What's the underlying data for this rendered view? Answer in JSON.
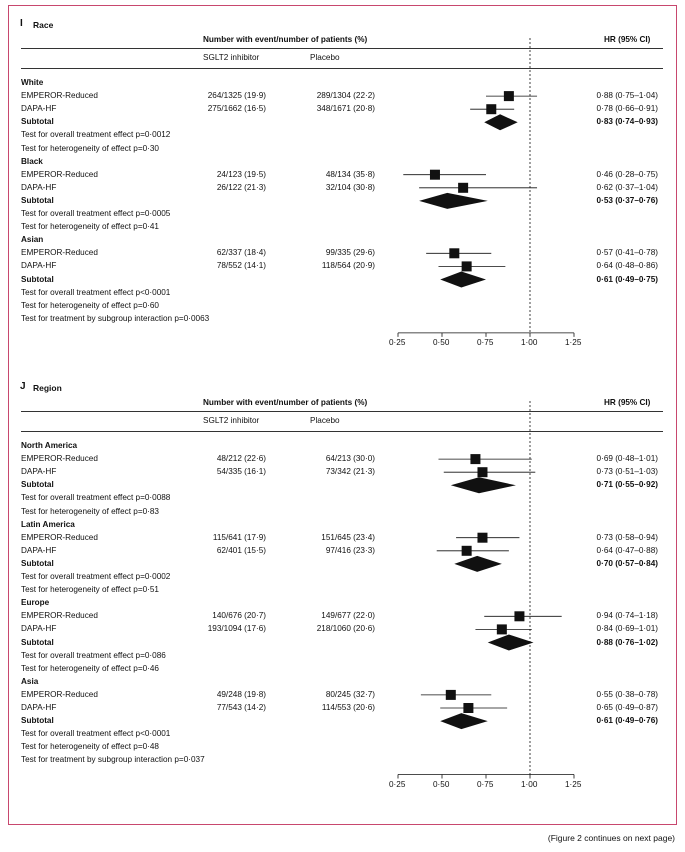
{
  "panels": [
    {
      "label": "I",
      "title": "Race",
      "header_events": "Number with event/number of patients (%)",
      "header_hr": "HR (95% CI)",
      "col_sglt2": "SGLT2 inhibitor",
      "col_placebo": "Placebo",
      "axis_ticks": [
        "0·25",
        "0·50",
        "0·75",
        "1·00",
        "1·25"
      ],
      "groups": [
        {
          "name": "White",
          "rows": [
            {
              "label": "EMPEROR-Reduced",
              "sglt2": "264/1325 (19·9)",
              "placebo": "289/1304 (22·2)",
              "hr_text": "0·88 (0·75–1·04)",
              "hr": 0.88,
              "lo": 0.75,
              "hi": 1.04
            },
            {
              "label": "DAPA-HF",
              "sglt2": "275/1662 (16·5)",
              "placebo": "348/1671 (20·8)",
              "hr_text": "0·78 (0·66–0·91)",
              "hr": 0.78,
              "lo": 0.66,
              "hi": 0.91
            }
          ],
          "subtotal": {
            "label": "Subtotal",
            "hr_text": "0·83 (0·74–0·93)",
            "hr": 0.83,
            "lo": 0.74,
            "hi": 0.93
          },
          "notes": [
            "Test for overall treatment effect p=0·0012",
            "Test for heterogeneity of effect p=0·30"
          ]
        },
        {
          "name": "Black",
          "rows": [
            {
              "label": "EMPEROR-Reduced",
              "sglt2": "24/123 (19·5)",
              "placebo": "48/134 (35·8)",
              "hr_text": "0·46 (0·28–0·75)",
              "hr": 0.46,
              "lo": 0.28,
              "hi": 0.75
            },
            {
              "label": "DAPA-HF",
              "sglt2": "26/122 (21·3)",
              "placebo": "32/104 (30·8)",
              "hr_text": "0·62 (0·37–1·04)",
              "hr": 0.62,
              "lo": 0.37,
              "hi": 1.04
            }
          ],
          "subtotal": {
            "label": "Subtotal",
            "hr_text": "0·53 (0·37–0·76)",
            "hr": 0.53,
            "lo": 0.37,
            "hi": 0.76
          },
          "notes": [
            "Test for overall treatment effect p=0·0005",
            "Test for heterogeneity of effect p=0·41"
          ]
        },
        {
          "name": "Asian",
          "rows": [
            {
              "label": "EMPEROR-Reduced",
              "sglt2": "62/337 (18·4)",
              "placebo": "99/335 (29·6)",
              "hr_text": "0·57 (0·41–0·78)",
              "hr": 0.57,
              "lo": 0.41,
              "hi": 0.78
            },
            {
              "label": "DAPA-HF",
              "sglt2": "78/552 (14·1)",
              "placebo": "118/564 (20·9)",
              "hr_text": "0·64 (0·48–0·86)",
              "hr": 0.64,
              "lo": 0.48,
              "hi": 0.86
            }
          ],
          "subtotal": {
            "label": "Subtotal",
            "hr_text": "0·61 (0·49–0·75)",
            "hr": 0.61,
            "lo": 0.49,
            "hi": 0.75
          },
          "notes": [
            "Test for overall treatment effect p<0·0001",
            "Test for heterogeneity of effect p=0·60",
            "Test for treatment by subgroup interaction p=0·0063"
          ]
        }
      ]
    },
    {
      "label": "J",
      "title": "Region",
      "header_events": "Number with event/number of patients (%)",
      "header_hr": "HR (95% CI)",
      "col_sglt2": "SGLT2 inhibitor",
      "col_placebo": "Placebo",
      "axis_ticks": [
        "0·25",
        "0·50",
        "0·75",
        "1·00",
        "1·25"
      ],
      "groups": [
        {
          "name": "North America",
          "rows": [
            {
              "label": "EMPEROR-Reduced",
              "sglt2": "48/212 (22·6)",
              "placebo": "64/213 (30·0)",
              "hr_text": "0·69 (0·48–1·01)",
              "hr": 0.69,
              "lo": 0.48,
              "hi": 1.01
            },
            {
              "label": "DAPA-HF",
              "sglt2": "54/335 (16·1)",
              "placebo": "73/342 (21·3)",
              "hr_text": "0·73 (0·51–1·03)",
              "hr": 0.73,
              "lo": 0.51,
              "hi": 1.03
            }
          ],
          "subtotal": {
            "label": "Subtotal",
            "hr_text": "0·71 (0·55–0·92)",
            "hr": 0.71,
            "lo": 0.55,
            "hi": 0.92
          },
          "notes": [
            "Test for overall treatment effect p=0·0088",
            "Test for heterogeneity of effect p=0·83"
          ]
        },
        {
          "name": "Latin America",
          "rows": [
            {
              "label": "EMPEROR-Reduced",
              "sglt2": "115/641 (17·9)",
              "placebo": "151/645 (23·4)",
              "hr_text": "0·73 (0·58–0·94)",
              "hr": 0.73,
              "lo": 0.58,
              "hi": 0.94
            },
            {
              "label": "DAPA-HF",
              "sglt2": "62/401 (15·5)",
              "placebo": "97/416 (23·3)",
              "hr_text": "0·64 (0·47–0·88)",
              "hr": 0.64,
              "lo": 0.47,
              "hi": 0.88
            }
          ],
          "subtotal": {
            "label": "Subtotal",
            "hr_text": "0·70 (0·57–0·84)",
            "hr": 0.7,
            "lo": 0.57,
            "hi": 0.84
          },
          "notes": [
            "Test for overall treatment effect p=0·0002",
            "Test for heterogeneity of effect p=0·51"
          ]
        },
        {
          "name": "Europe",
          "rows": [
            {
              "label": "EMPEROR-Reduced",
              "sglt2": "140/676 (20·7)",
              "placebo": "149/677 (22·0)",
              "hr_text": "0·94 (0·74–1·18)",
              "hr": 0.94,
              "lo": 0.74,
              "hi": 1.18
            },
            {
              "label": "DAPA-HF",
              "sglt2": "193/1094 (17·6)",
              "placebo": "218/1060 (20·6)",
              "hr_text": "0·84 (0·69–1·01)",
              "hr": 0.84,
              "lo": 0.69,
              "hi": 1.01
            }
          ],
          "subtotal": {
            "label": "Subtotal",
            "hr_text": "0·88 (0·76–1·02)",
            "hr": 0.88,
            "lo": 0.76,
            "hi": 1.02
          },
          "notes": [
            "Test for overall treatment effect p=0·086",
            "Test for heterogeneity of effect p=0·46"
          ]
        },
        {
          "name": "Asia",
          "rows": [
            {
              "label": "EMPEROR-Reduced",
              "sglt2": "49/248 (19·8)",
              "placebo": "80/245 (32·7)",
              "hr_text": "0·55 (0·38–0·78)",
              "hr": 0.55,
              "lo": 0.38,
              "hi": 0.78
            },
            {
              "label": "DAPA-HF",
              "sglt2": "77/543 (14·2)",
              "placebo": "114/553 (20·6)",
              "hr_text": "0·65 (0·49–0·87)",
              "hr": 0.65,
              "lo": 0.49,
              "hi": 0.87
            }
          ],
          "subtotal": {
            "label": "Subtotal",
            "hr_text": "0·61 (0·49–0·76)",
            "hr": 0.61,
            "lo": 0.49,
            "hi": 0.76
          },
          "notes": [
            "Test for overall treatment effect p<0·0001",
            "Test for heterogeneity of effect p=0·48",
            "Test for treatment by subgroup interaction p=0·037"
          ]
        }
      ]
    }
  ],
  "chart_data": {
    "type": "forest",
    "xlim": [
      0.25,
      1.25
    ],
    "reference_line": 1.0,
    "x_ticks": [
      0.25,
      0.5,
      0.75,
      1.0,
      1.25
    ]
  },
  "continues_note": "(Figure 2 continues on next page)"
}
